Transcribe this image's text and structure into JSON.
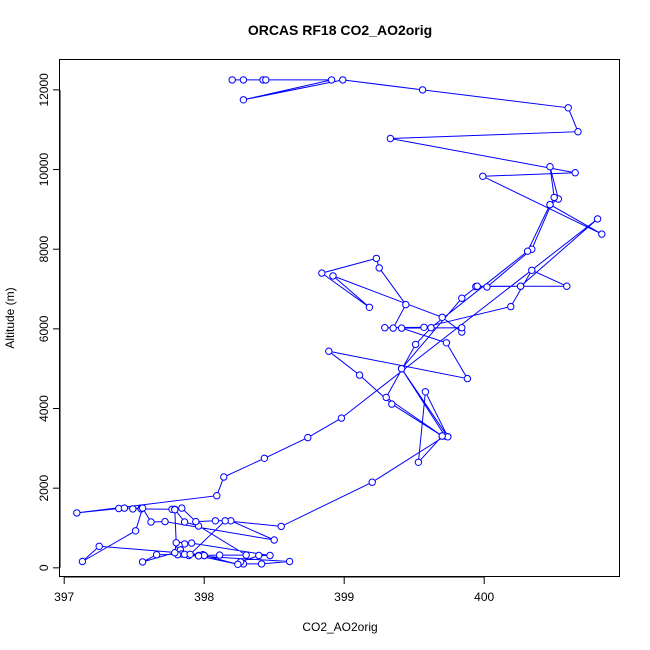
{
  "chart_data": {
    "type": "line",
    "title": "ORCAS RF18 CO2_AO2orig",
    "xlabel": "CO2_AO2orig",
    "ylabel": "Altitude (m)",
    "xlim": [
      396.97,
      400.97
    ],
    "ylim": [
      -230,
      12750
    ],
    "x_ticks": [
      397,
      398,
      399,
      400
    ],
    "x_tick_labels": [
      "397",
      "398",
      "399",
      "400"
    ],
    "y_ticks": [
      0,
      2000,
      4000,
      6000,
      8000,
      10000,
      12000
    ],
    "y_tick_labels": [
      "0",
      "2000",
      "4000",
      "6000",
      "8000",
      "10000",
      "12000"
    ],
    "grid": false,
    "legend": "none",
    "series_color": "#0000ff",
    "marker": "open-circle",
    "series": [
      {
        "values": [
          [
            398.2,
            12250
          ],
          [
            398.28,
            12250
          ],
          [
            398.42,
            12250
          ],
          [
            398.44,
            12250
          ],
          [
            398.91,
            12250
          ],
          [
            398.28,
            11750
          ],
          [
            398.99,
            12250
          ],
          [
            399.56,
            12000
          ],
          [
            400.6,
            11550
          ],
          [
            400.67,
            10950
          ],
          [
            399.33,
            10780
          ],
          [
            400.65,
            9920
          ],
          [
            399.99,
            9830
          ],
          [
            400.84,
            8380
          ],
          [
            400.47,
            9120
          ],
          [
            400.53,
            9260
          ],
          [
            400.47,
            10070
          ],
          [
            400.5,
            9300
          ],
          [
            400.34,
            8000
          ],
          [
            400.02,
            7050
          ],
          [
            399.94,
            7060
          ],
          [
            400.26,
            7070
          ],
          [
            400.59,
            7070
          ],
          [
            400.34,
            7470
          ],
          [
            400.19,
            6560
          ],
          [
            399.57,
            6040
          ],
          [
            399.29,
            6030
          ],
          [
            399.35,
            6020
          ],
          [
            399.44,
            6610
          ],
          [
            399.25,
            7530
          ],
          [
            399.23,
            7770
          ],
          [
            398.84,
            7400
          ],
          [
            399.18,
            6540
          ],
          [
            398.92,
            7330
          ],
          [
            399.7,
            6290
          ],
          [
            399.84,
            5920
          ],
          [
            399.84,
            6030
          ],
          [
            399.41,
            6020
          ],
          [
            399.73,
            5650
          ],
          [
            399.88,
            4750
          ],
          [
            398.89,
            5440
          ],
          [
            399.11,
            4840
          ],
          [
            399.34,
            4110
          ],
          [
            399.7,
            3310
          ],
          [
            399.74,
            3290
          ],
          [
            399.41,
            5000
          ],
          [
            399.84,
            6770
          ],
          [
            399.95,
            7070
          ],
          [
            400.26,
            7070
          ],
          [
            400.81,
            8760
          ],
          [
            398.98,
            3760
          ],
          [
            398.74,
            3270
          ],
          [
            398.43,
            2750
          ],
          [
            398.14,
            2280
          ],
          [
            398.09,
            1810
          ],
          [
            397.09,
            1380
          ],
          [
            397.39,
            1490
          ],
          [
            397.43,
            1500
          ],
          [
            397.55,
            1500
          ],
          [
            397.55,
            1480
          ],
          [
            397.49,
            1480
          ],
          [
            397.77,
            1470
          ],
          [
            397.79,
            1470
          ],
          [
            397.86,
            1150
          ],
          [
            397.96,
            1050
          ],
          [
            398.3,
            320
          ],
          [
            398.11,
            320
          ],
          [
            397.96,
            310
          ],
          [
            397.89,
            310
          ],
          [
            398.61,
            160
          ],
          [
            398.41,
            100
          ],
          [
            398.28,
            100
          ],
          [
            398.26,
            150
          ],
          [
            398.39,
            310
          ],
          [
            398.47,
            310
          ],
          [
            397.91,
            620
          ],
          [
            397.86,
            600
          ],
          [
            397.82,
            570
          ],
          [
            397.83,
            450
          ],
          [
            397.84,
            350
          ],
          [
            397.81,
            330
          ],
          [
            397.86,
            340
          ],
          [
            397.66,
            330
          ],
          [
            397.56,
            150
          ],
          [
            397.79,
            380
          ],
          [
            397.8,
            630
          ],
          [
            397.79,
            1460
          ],
          [
            397.84,
            1500
          ],
          [
            397.94,
            1160
          ],
          [
            398.08,
            1180
          ],
          [
            398.19,
            1180
          ],
          [
            398.5,
            700
          ],
          [
            397.72,
            1160
          ],
          [
            397.62,
            1150
          ],
          [
            397.56,
            1500
          ],
          [
            397.51,
            930
          ],
          [
            397.13,
            160
          ],
          [
            397.25,
            540
          ],
          [
            397.99,
            330
          ],
          [
            398.0,
            310
          ],
          [
            398.0,
            310
          ],
          [
            398.24,
            90
          ],
          [
            397.96,
            300
          ],
          [
            397.9,
            340
          ],
          [
            398.15,
            1180
          ],
          [
            398.55,
            1040
          ],
          [
            399.2,
            2150
          ],
          [
            399.72,
            3310
          ],
          [
            399.41,
            5000
          ],
          [
            399.74,
            3290
          ],
          [
            399.58,
            4420
          ],
          [
            399.53,
            2650
          ],
          [
            399.7,
            3310
          ],
          [
            399.3,
            4280
          ],
          [
            399.51,
            5610
          ],
          [
            399.62,
            6030
          ],
          [
            400.31,
            7950
          ],
          [
            400.47,
            9120
          ]
        ]
      }
    ]
  }
}
